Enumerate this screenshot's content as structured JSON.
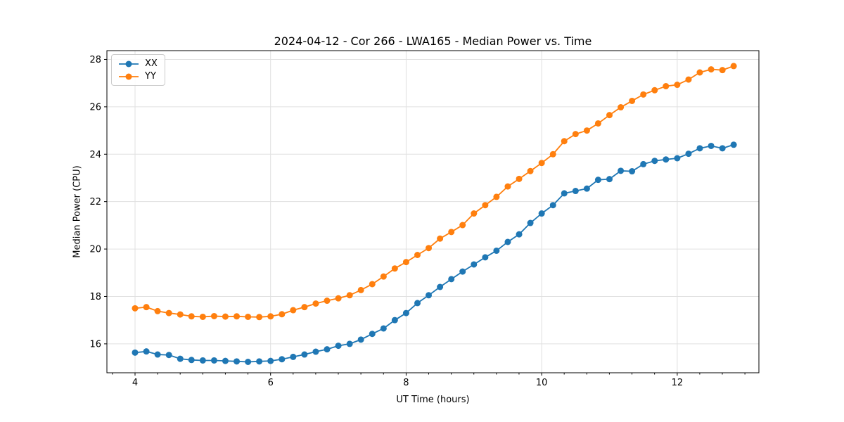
{
  "figure": {
    "background": "#ffffff",
    "frame_color": "#000000",
    "grid_color": "#e0e0e0"
  },
  "chart_data": {
    "type": "line",
    "title": "2024-04-12 - Cor 266 - LWA165 - Median Power vs. Time",
    "xlabel": "UT Time (hours)",
    "ylabel": "Median Power (CPU)",
    "xlim": [
      3.585,
      13.205
    ],
    "ylim": [
      14.78,
      28.37
    ],
    "x_ticks": [
      4,
      6,
      8,
      10,
      12
    ],
    "y_ticks": [
      16,
      18,
      20,
      22,
      24,
      26,
      28
    ],
    "x_minor_tick_step": 0.3333,
    "grid": true,
    "legend_position": "upper-left",
    "x_step_minutes": 10,
    "x": [
      4.0,
      4.167,
      4.333,
      4.5,
      4.667,
      4.833,
      5.0,
      5.167,
      5.333,
      5.5,
      5.667,
      5.833,
      6.0,
      6.167,
      6.333,
      6.5,
      6.667,
      6.833,
      7.0,
      7.167,
      7.333,
      7.5,
      7.667,
      7.833,
      8.0,
      8.167,
      8.333,
      8.5,
      8.667,
      8.833,
      9.0,
      9.167,
      9.333,
      9.5,
      9.667,
      9.833,
      10.0,
      10.167,
      10.333,
      10.5,
      10.667,
      10.833,
      11.0,
      11.167,
      11.333,
      11.5,
      11.667,
      11.833,
      12.0,
      12.167,
      12.333,
      12.5,
      12.667,
      12.833
    ],
    "series": [
      {
        "name": "XX",
        "color": "#1f77b4",
        "marker": "circle",
        "values": [
          15.63,
          15.68,
          15.55,
          15.53,
          15.37,
          15.32,
          15.3,
          15.3,
          15.28,
          15.26,
          15.24,
          15.26,
          15.28,
          15.35,
          15.45,
          15.55,
          15.67,
          15.77,
          15.92,
          16.0,
          16.18,
          16.42,
          16.65,
          17.0,
          17.3,
          17.72,
          18.05,
          18.4,
          18.73,
          19.05,
          19.35,
          19.65,
          19.93,
          20.3,
          20.62,
          21.1,
          21.5,
          21.85,
          22.35,
          22.45,
          22.55,
          22.92,
          22.95,
          23.3,
          23.28,
          23.58,
          23.72,
          23.78,
          23.83,
          24.02,
          24.25,
          24.35,
          24.25,
          24.4
        ]
      },
      {
        "name": "YY",
        "color": "#ff7f0e",
        "marker": "circle",
        "values": [
          17.5,
          17.55,
          17.38,
          17.3,
          17.24,
          17.16,
          17.14,
          17.17,
          17.15,
          17.16,
          17.14,
          17.13,
          17.16,
          17.25,
          17.42,
          17.55,
          17.7,
          17.82,
          17.92,
          18.05,
          18.27,
          18.52,
          18.84,
          19.18,
          19.45,
          19.75,
          20.04,
          20.44,
          20.72,
          21.01,
          21.5,
          21.85,
          22.2,
          22.64,
          22.96,
          23.29,
          23.63,
          24.0,
          24.55,
          24.85,
          25.0,
          25.3,
          25.65,
          25.98,
          26.25,
          26.52,
          26.7,
          26.87,
          26.93,
          27.15,
          27.45,
          27.58,
          27.55,
          27.72
        ]
      }
    ]
  }
}
